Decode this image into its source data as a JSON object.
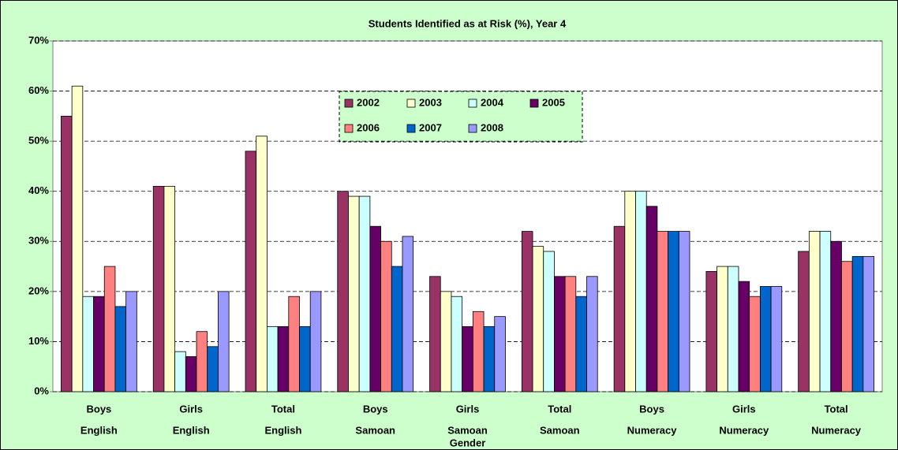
{
  "chart_data": {
    "type": "bar",
    "title": "Students Identified as at Risk (%), Year 4",
    "categories": [
      [
        "Boys",
        "English"
      ],
      [
        "Girls",
        "English"
      ],
      [
        "Total",
        "English"
      ],
      [
        "Boys",
        "Samoan"
      ],
      [
        "Girls",
        "Samoan",
        "Gender"
      ],
      [
        "Total",
        "Samoan"
      ],
      [
        "Boys",
        "Numeracy"
      ],
      [
        "Girls",
        "Numeracy"
      ],
      [
        "Total",
        "Numeracy"
      ]
    ],
    "series": [
      {
        "name": "2002",
        "color": "#993366",
        "values": [
          55,
          41,
          48,
          40,
          23,
          32,
          33,
          24,
          28
        ]
      },
      {
        "name": "2003",
        "color": "#FFFFCC",
        "values": [
          61,
          41,
          51,
          39,
          20,
          29,
          40,
          25,
          32
        ]
      },
      {
        "name": "2004",
        "color": "#CCFFFF",
        "values": [
          19,
          8,
          13,
          39,
          19,
          28,
          40,
          25,
          32
        ]
      },
      {
        "name": "2005",
        "color": "#660066",
        "values": [
          19,
          7,
          13,
          33,
          13,
          23,
          37,
          22,
          30
        ]
      },
      {
        "name": "2006",
        "color": "#FF8080",
        "values": [
          25,
          12,
          19,
          30,
          16,
          23,
          32,
          19,
          26
        ]
      },
      {
        "name": "2007",
        "color": "#0066CC",
        "values": [
          17,
          9,
          13,
          25,
          13,
          19,
          32,
          21,
          27
        ]
      },
      {
        "name": "2008",
        "color": "#9999FF",
        "values": [
          20,
          20,
          20,
          31,
          15,
          23,
          32,
          21,
          27
        ]
      }
    ],
    "ylim": [
      0,
      70
    ],
    "yticks": [
      {
        "value": 0,
        "label": "0%"
      },
      {
        "value": 10,
        "label": "10%"
      },
      {
        "value": 20,
        "label": "20%"
      },
      {
        "value": 30,
        "label": "30%"
      },
      {
        "value": 40,
        "label": "40%"
      },
      {
        "value": 50,
        "label": "50%"
      },
      {
        "value": 60,
        "label": "60%"
      },
      {
        "value": 70,
        "label": "70%"
      }
    ],
    "grid": true
  }
}
